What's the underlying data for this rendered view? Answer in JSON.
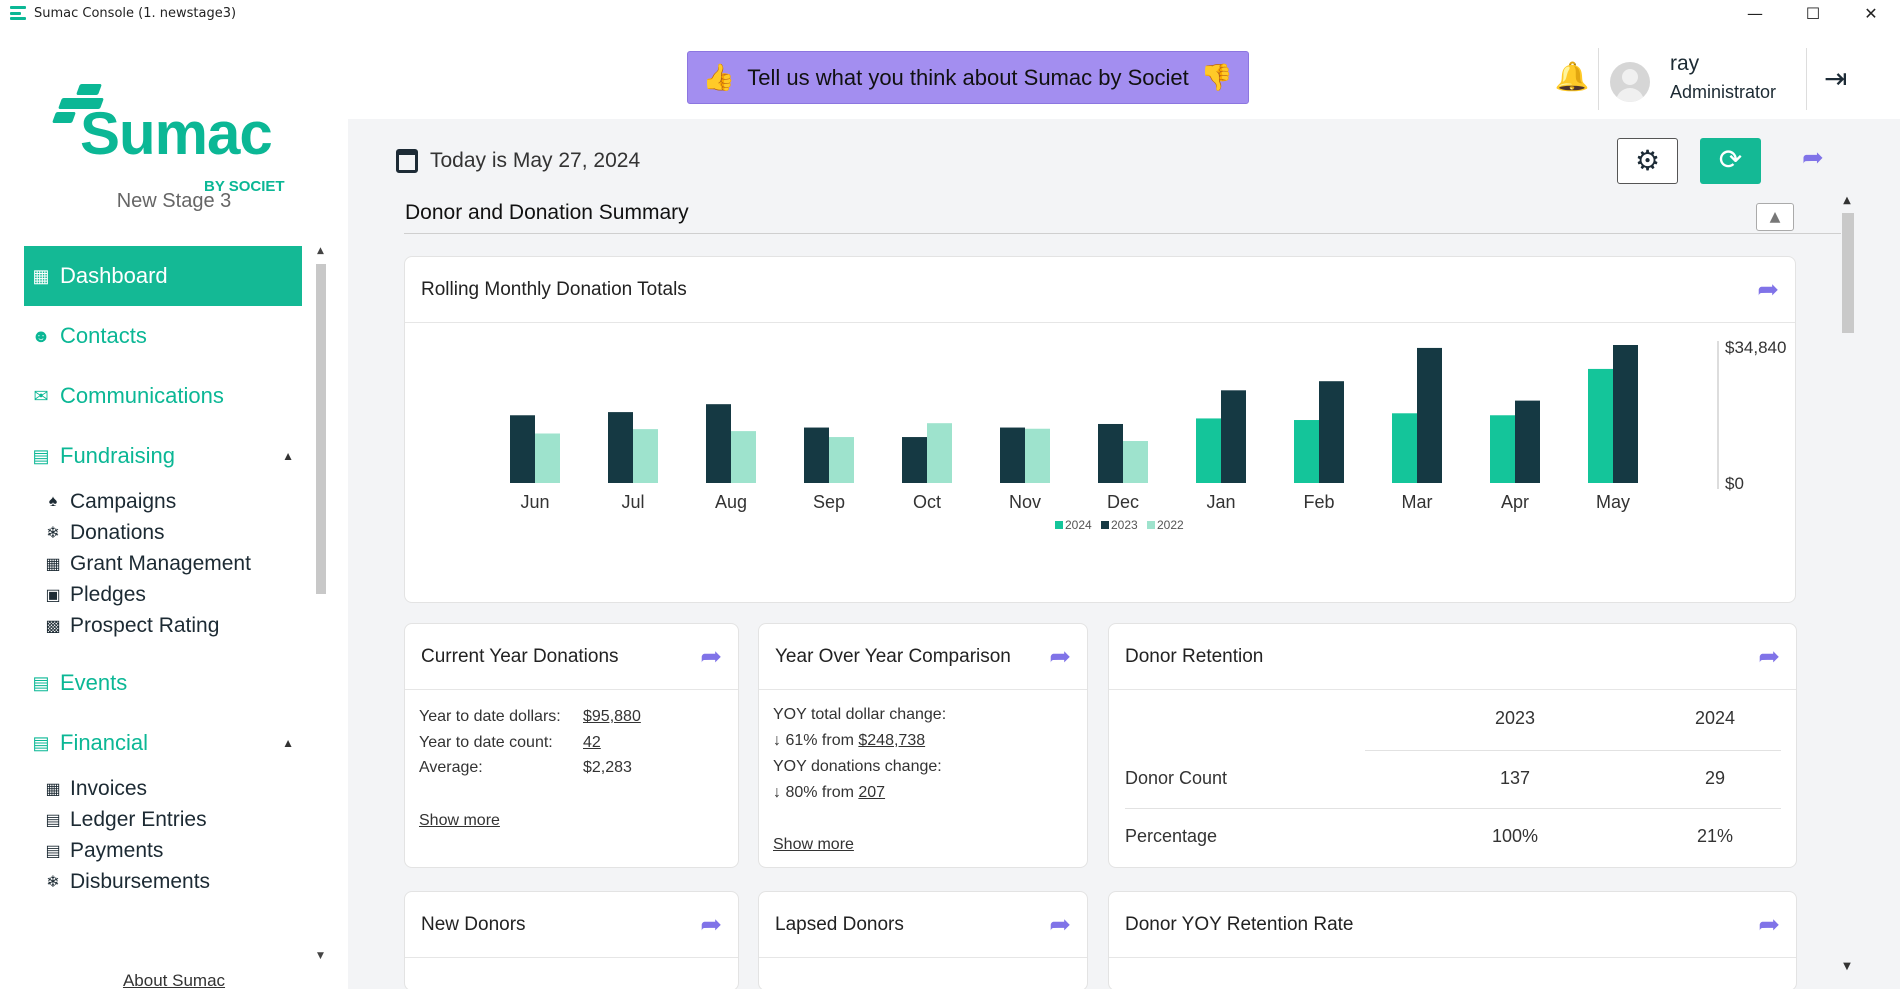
{
  "window": {
    "title": "Sumac Console (1. newstage3)",
    "controls": [
      "minimize",
      "maximize",
      "close"
    ]
  },
  "sidebar": {
    "logo_word": "Sumac",
    "logo_by": "BY SOCIET",
    "org_name": "New Stage 3",
    "nav": [
      {
        "label": "Dashboard",
        "icon": "dashboard-icon",
        "active": true
      },
      {
        "label": "Contacts",
        "icon": "contacts-icon"
      },
      {
        "label": "Communications",
        "icon": "communications-icon"
      },
      {
        "label": "Fundraising",
        "icon": "fundraising-icon",
        "expanded": true,
        "children": [
          {
            "label": "Campaigns",
            "icon": "campaigns-icon"
          },
          {
            "label": "Donations",
            "icon": "donations-icon"
          },
          {
            "label": "Grant Management",
            "icon": "grant-icon"
          },
          {
            "label": "Pledges",
            "icon": "pledges-icon"
          },
          {
            "label": "Prospect Rating",
            "icon": "prospect-icon"
          }
        ]
      },
      {
        "label": "Events",
        "icon": "events-icon"
      },
      {
        "label": "Financial",
        "icon": "financial-icon",
        "expanded": true,
        "children": [
          {
            "label": "Invoices",
            "icon": "invoices-icon"
          },
          {
            "label": "Ledger Entries",
            "icon": "ledger-icon"
          },
          {
            "label": "Payments",
            "icon": "payments-icon"
          },
          {
            "label": "Disbursements",
            "icon": "disbursements-icon"
          }
        ]
      }
    ],
    "about_link": "About Sumac"
  },
  "header": {
    "feedback_text": "Tell us what you think about Sumac by Societ",
    "user_name": "ray",
    "user_role": "Administrator"
  },
  "main": {
    "today_text": "Today is May 27, 2024",
    "section_title": "Donor and Donation Summary",
    "cards": {
      "rolling": {
        "title": "Rolling Monthly Donation Totals"
      },
      "current_year": {
        "title": "Current Year Donations",
        "ytd_dollars_label": "Year to date dollars:",
        "ytd_dollars_value": "$95,880",
        "ytd_count_label": "Year to date count:",
        "ytd_count_value": "42",
        "average_label": "Average:",
        "average_value": "$2,283",
        "show_more": "Show more"
      },
      "yoy": {
        "title": "Year Over Year Comparison",
        "total_change_label": "YOY total dollar change:",
        "total_change_text": "↓ 61% from",
        "total_change_value": "$248,738",
        "donations_change_label": "YOY donations change:",
        "donations_change_text": "↓ 80% from",
        "donations_change_value": "207",
        "show_more": "Show more"
      },
      "retention": {
        "title": "Donor Retention",
        "columns": [
          "",
          "2023",
          "2024"
        ],
        "rows": [
          [
            "Donor Count",
            "137",
            "29"
          ],
          [
            "Percentage",
            "100%",
            "21%"
          ]
        ]
      },
      "new_donors": {
        "title": "New Donors"
      },
      "lapsed_donors": {
        "title": "Lapsed Donors"
      },
      "yoy_retention": {
        "title": "Donor YOY Retention Rate"
      }
    }
  },
  "colors": {
    "brand_teal": "#0bb795",
    "y2024": "#14c59a",
    "y2023": "#153943",
    "y2022": "#9ee3cd",
    "accent_purple": "#8073e8",
    "feedback_bg": "#a38ef0"
  },
  "chart_data": {
    "type": "bar",
    "title": "Rolling Monthly Donation Totals",
    "categories": [
      "Jun",
      "Jul",
      "Aug",
      "Sep",
      "Oct",
      "Nov",
      "Dec",
      "Jan",
      "Feb",
      "Mar",
      "Apr",
      "May"
    ],
    "series": [
      {
        "name": "2024",
        "color": "#14c59a",
        "values": [
          null,
          null,
          null,
          null,
          null,
          null,
          null,
          16300,
          15900,
          17600,
          17100,
          28800
        ]
      },
      {
        "name": "2023",
        "color": "#153943",
        "values": [
          17100,
          17900,
          19900,
          14000,
          11600,
          14000,
          14900,
          23400,
          25700,
          34100,
          20800,
          34840
        ]
      },
      {
        "name": "2022",
        "color": "#9ee3cd",
        "values": [
          12500,
          13600,
          13100,
          11600,
          15100,
          13700,
          10600,
          null,
          null,
          null,
          null,
          null
        ]
      }
    ],
    "y_tick_labels": [
      "$34,840",
      "$0"
    ],
    "ylim": [
      0,
      34840
    ],
    "legend": [
      "2024",
      "2023",
      "2022"
    ],
    "legend_position": "bottom-center",
    "grid": false
  }
}
